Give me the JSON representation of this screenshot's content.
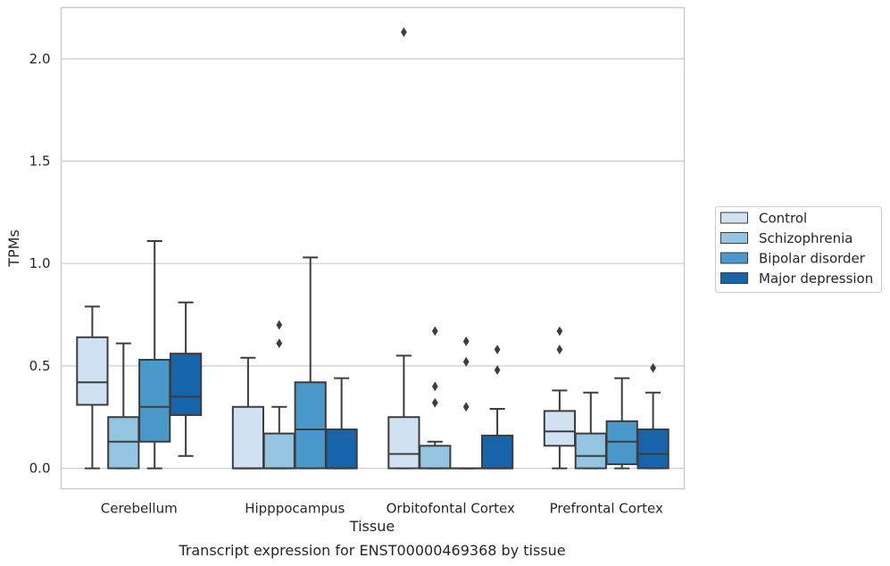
{
  "caption": "Transcript expression for ENST00000469368 by tissue",
  "chart_data": {
    "type": "box",
    "xlabel": "Tissue",
    "ylabel": "TPMs",
    "ylim": [
      -0.1,
      2.25
    ],
    "yticks": [
      0.0,
      0.5,
      1.0,
      1.5,
      2.0
    ],
    "ytick_labels": [
      "0.0",
      "0.5",
      "1.0",
      "1.5",
      "2.0"
    ],
    "grid": "horizontal",
    "legend_position": "outside-right",
    "categories": [
      "Cerebellum",
      "Hipppocampus",
      "Orbitofontal Cortex",
      "Prefrontal Cortex"
    ],
    "series": [
      {
        "name": "Control",
        "color": "#d0e1f2",
        "boxes": [
          {
            "whislo": 0.0,
            "q1": 0.31,
            "med": 0.42,
            "q3": 0.64,
            "whishi": 0.79,
            "fliers": []
          },
          {
            "whislo": 0.0,
            "q1": 0.0,
            "med": 0.0,
            "q3": 0.3,
            "whishi": 0.54,
            "fliers": []
          },
          {
            "whislo": 0.0,
            "q1": 0.0,
            "med": 0.07,
            "q3": 0.25,
            "whishi": 0.55,
            "fliers": [
              2.13
            ]
          },
          {
            "whislo": 0.0,
            "q1": 0.11,
            "med": 0.18,
            "q3": 0.28,
            "whishi": 0.38,
            "fliers": [
              0.58,
              0.67
            ]
          }
        ]
      },
      {
        "name": "Schizophrenia",
        "color": "#94c4df",
        "boxes": [
          {
            "whislo": 0.0,
            "q1": 0.0,
            "med": 0.13,
            "q3": 0.25,
            "whishi": 0.61,
            "fliers": []
          },
          {
            "whislo": 0.0,
            "q1": 0.0,
            "med": 0.0,
            "q3": 0.17,
            "whishi": 0.3,
            "fliers": [
              0.61,
              0.7
            ]
          },
          {
            "whislo": 0.0,
            "q1": 0.0,
            "med": 0.0,
            "q3": 0.11,
            "whishi": 0.13,
            "fliers": [
              0.32,
              0.4,
              0.67
            ]
          },
          {
            "whislo": 0.0,
            "q1": 0.0,
            "med": 0.06,
            "q3": 0.17,
            "whishi": 0.37,
            "fliers": []
          }
        ]
      },
      {
        "name": "Bipolar disorder",
        "color": "#4a98c9",
        "boxes": [
          {
            "whislo": 0.0,
            "q1": 0.13,
            "med": 0.3,
            "q3": 0.53,
            "whishi": 1.11,
            "fliers": []
          },
          {
            "whislo": 0.0,
            "q1": 0.0,
            "med": 0.19,
            "q3": 0.42,
            "whishi": 1.03,
            "fliers": []
          },
          {
            "whislo": 0.0,
            "q1": 0.0,
            "med": 0.0,
            "q3": 0.0,
            "whishi": 0.0,
            "fliers": [
              0.3,
              0.52,
              0.62
            ]
          },
          {
            "whislo": 0.0,
            "q1": 0.02,
            "med": 0.13,
            "q3": 0.23,
            "whishi": 0.44,
            "fliers": []
          }
        ]
      },
      {
        "name": "Major depression",
        "color": "#1764ab",
        "boxes": [
          {
            "whislo": 0.06,
            "q1": 0.26,
            "med": 0.35,
            "q3": 0.56,
            "whishi": 0.81,
            "fliers": []
          },
          {
            "whislo": 0.0,
            "q1": 0.0,
            "med": 0.0,
            "q3": 0.19,
            "whishi": 0.44,
            "fliers": []
          },
          {
            "whislo": 0.0,
            "q1": 0.0,
            "med": 0.0,
            "q3": 0.16,
            "whishi": 0.29,
            "fliers": [
              0.48,
              0.58
            ]
          },
          {
            "whislo": 0.0,
            "q1": 0.0,
            "med": 0.07,
            "q3": 0.19,
            "whishi": 0.37,
            "fliers": [
              0.49
            ]
          }
        ]
      }
    ],
    "colors": {
      "edge": "#3d3d3d",
      "grid": "#cccccc",
      "frame": "#cccccc",
      "background": "#ffffff"
    }
  }
}
